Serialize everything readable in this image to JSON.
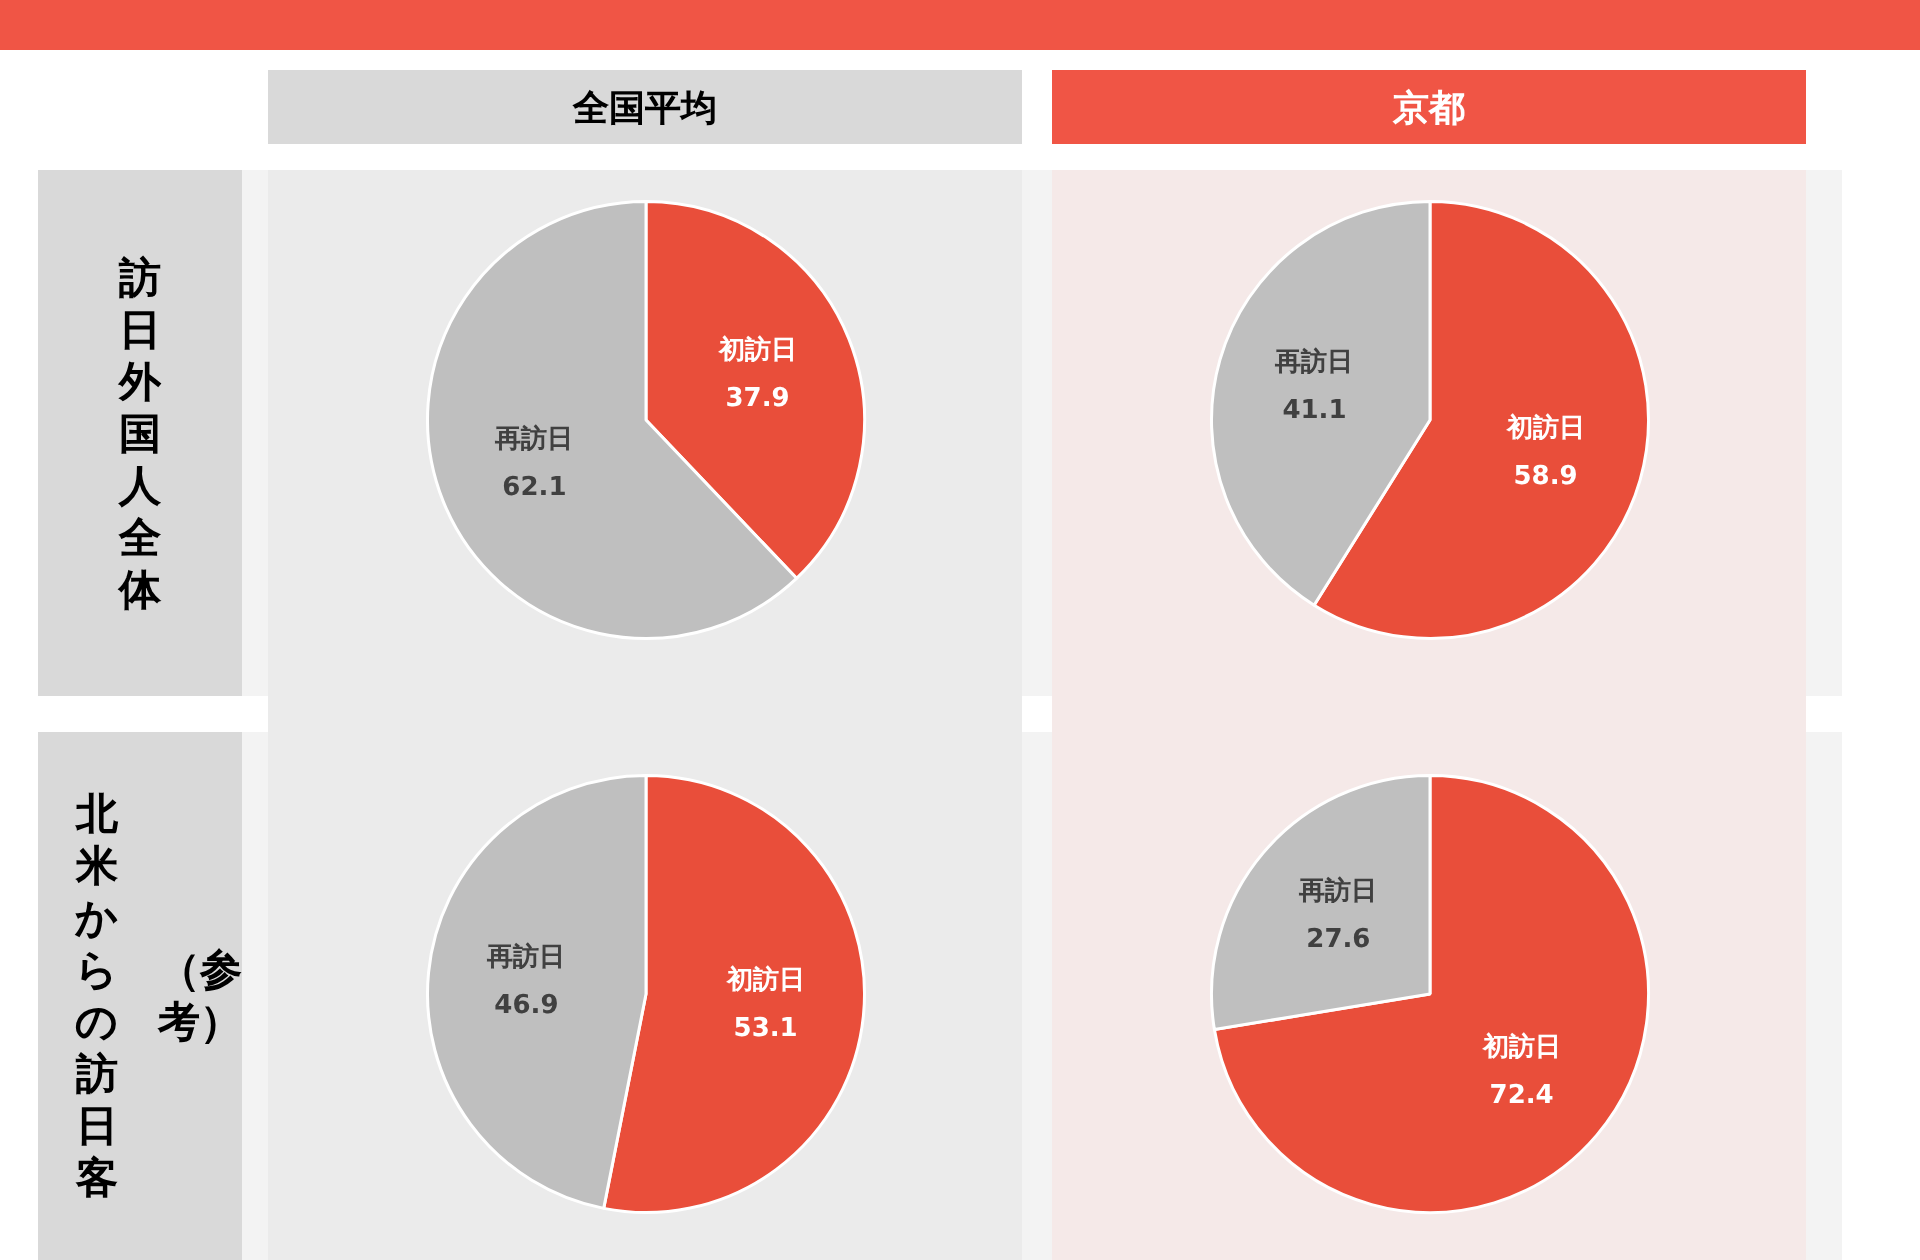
{
  "chart_data": [
    {
      "type": "pie",
      "title": "全国平均",
      "ylabel": [
        "訪日外国人全体"
      ],
      "categories": [
        "初訪日",
        "再訪日"
      ],
      "values": [
        37.9,
        62.1
      ],
      "colors": [
        "#e94e3a",
        "#bfbfbf"
      ],
      "data_labels": true,
      "legend": false
    },
    {
      "type": "pie",
      "title": "京都",
      "categories": [
        "初訪日",
        "再訪日"
      ],
      "values": [
        58.9,
        41.1
      ],
      "colors": [
        "#e94e3a",
        "#bfbfbf"
      ],
      "data_labels": true,
      "legend": false
    },
    {
      "type": "pie",
      "ylabel": [
        "北米からの訪日客",
        "（参考）"
      ],
      "categories": [
        "初訪日",
        "再訪日"
      ],
      "values": [
        53.1,
        46.9
      ],
      "colors": [
        "#e94e3a",
        "#bfbfbf"
      ],
      "data_labels": true,
      "legend": false
    },
    {
      "type": "pie",
      "categories": [
        "初訪日",
        "再訪日"
      ],
      "values": [
        72.4,
        27.6
      ],
      "colors": [
        "#e94e3a",
        "#bfbfbf"
      ],
      "data_labels": true,
      "legend": false
    }
  ]
}
